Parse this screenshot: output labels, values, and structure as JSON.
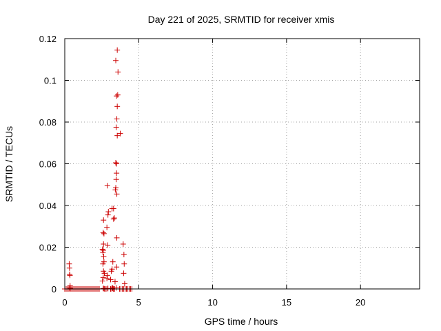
{
  "chart_data": {
    "type": "scatter",
    "title": "Day 221 of 2025, SRMTID for receiver xmis",
    "xlabel": "GPS time / hours",
    "ylabel": "SRMTID / TECUs",
    "xlim": [
      0,
      24
    ],
    "ylim": [
      0,
      0.12
    ],
    "xticks": [
      0,
      5,
      10,
      15,
      20
    ],
    "xtick_labels": [
      "0",
      "5",
      "10",
      "15",
      "20"
    ],
    "yticks": [
      0,
      0.02,
      0.04,
      0.06,
      0.08,
      0.1,
      0.12
    ],
    "ytick_labels": [
      "0",
      "0.02",
      "0.04",
      "0.06",
      "0.08",
      "0.1",
      "0.12"
    ],
    "grid": true,
    "marker": "+",
    "color": "#cc0000",
    "series": [
      {
        "name": "SRMTID",
        "x": [
          0.3,
          0.32,
          0.35,
          0.33,
          0.36,
          0.34,
          0.38,
          2.55,
          2.6,
          2.62,
          2.58,
          2.65,
          2.63,
          2.6,
          2.55,
          2.58,
          2.62,
          2.65,
          2.6,
          2.62,
          2.68,
          2.6,
          2.65,
          2.85,
          2.88,
          2.9,
          2.85,
          2.92,
          2.95,
          2.88,
          2.9,
          2.92,
          3.1,
          3.15,
          3.2,
          3.25,
          3.3,
          3.35,
          3.2,
          3.3,
          3.25,
          3.18,
          3.22,
          3.4,
          3.42,
          3.45,
          3.48,
          3.5,
          3.52,
          3.45,
          3.5,
          3.55,
          3.48,
          3.52,
          3.55,
          3.5,
          3.58,
          3.6,
          3.45,
          3.55,
          3.52,
          3.5,
          3.48,
          3.75,
          3.95,
          4.0,
          4.02,
          3.98,
          4.05
        ],
        "y": [
          0.012,
          0.01,
          0.0065,
          0.007,
          0.0015,
          0.0005,
          0.0002,
          0.0038,
          0.0055,
          0.0085,
          0.012,
          0.013,
          0.0155,
          0.0185,
          0.019,
          0.0175,
          0.0215,
          0.0265,
          0.027,
          0.033,
          0.0075,
          0.0002,
          0.0002,
          0.005,
          0.0065,
          0.021,
          0.0295,
          0.0355,
          0.037,
          0.0495,
          0.0002,
          0.0002,
          0.0045,
          0.0085,
          0.0095,
          0.013,
          0.0335,
          0.034,
          0.0385,
          0.0385,
          0.0005,
          0.0002,
          0.0003,
          0.0035,
          0.0475,
          0.0485,
          0.0525,
          0.0555,
          0.0455,
          0.0605,
          0.06,
          0.0735,
          0.0775,
          0.0815,
          0.0875,
          0.0925,
          0.093,
          0.104,
          0.1095,
          0.1145,
          0.0245,
          0.0105,
          0.0005,
          0.0745,
          0.0215,
          0.0165,
          0.012,
          0.0075,
          0.0025
        ]
      }
    ],
    "baseline_band": [
      [
        0,
        2.4
      ],
      [
        2.7,
        2.8
      ],
      [
        3.1,
        3.4
      ],
      [
        3.7,
        4.6
      ]
    ]
  }
}
